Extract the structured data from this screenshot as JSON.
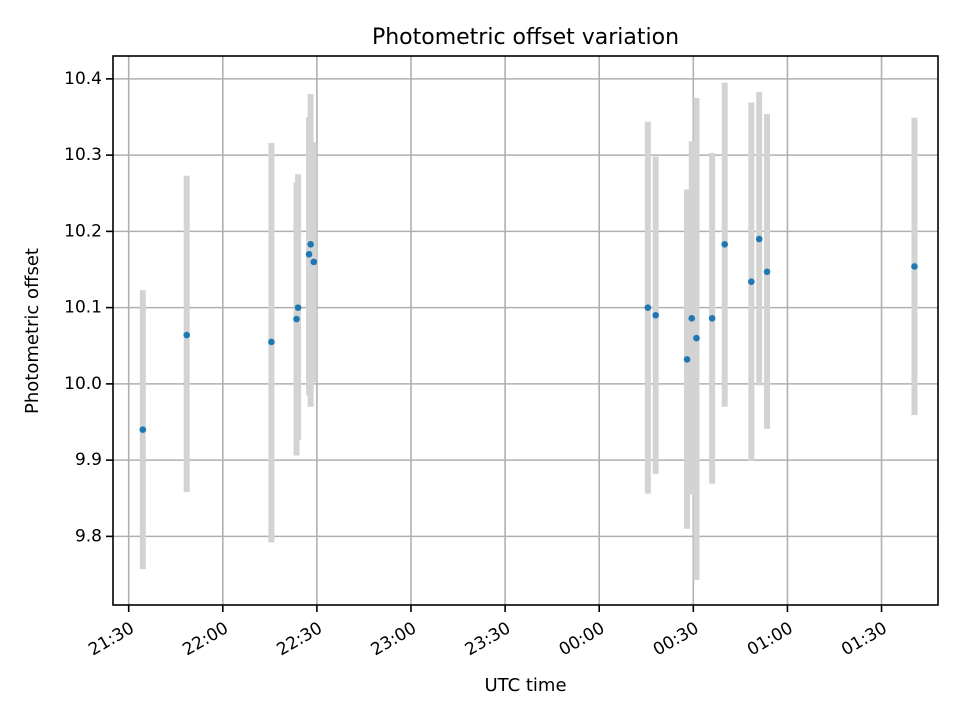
{
  "chart_data": {
    "type": "scatter",
    "title": "Photometric offset variation",
    "xlabel": "UTC time",
    "ylabel": "Photometric offset",
    "grid": true,
    "x_axis": {
      "kind": "time",
      "range": [
        "2000-01-01T21:25:00",
        "2000-01-02T01:48:00"
      ],
      "ticks": [
        "2000-01-01T21:30:00",
        "2000-01-01T22:00:00",
        "2000-01-01T22:30:00",
        "2000-01-01T23:00:00",
        "2000-01-01T23:30:00",
        "2000-01-02T00:00:00",
        "2000-01-02T00:30:00",
        "2000-01-02T01:00:00",
        "2000-01-02T01:30:00"
      ],
      "tick_labels": [
        "21:30",
        "22:00",
        "22:30",
        "23:00",
        "23:30",
        "00:00",
        "00:30",
        "01:00",
        "01:30"
      ]
    },
    "y_axis": {
      "range": [
        9.71,
        10.43
      ],
      "ticks": [
        9.8,
        9.9,
        10.0,
        10.1,
        10.2,
        10.3,
        10.4
      ],
      "tick_labels": [
        "9.8",
        "9.9",
        "10.0",
        "10.1",
        "10.2",
        "10.3",
        "10.4"
      ]
    },
    "colors": {
      "point": "#1f77b4",
      "errorbar": "#d3d3d3",
      "grid": "#b0b0b0"
    },
    "points": [
      {
        "t": "2000-01-01T21:34:30",
        "y": 9.94,
        "lo": 9.757,
        "hi": 10.123
      },
      {
        "t": "2000-01-01T21:48:30",
        "y": 10.064,
        "lo": 9.858,
        "hi": 10.273
      },
      {
        "t": "2000-01-01T22:15:30",
        "y": 10.055,
        "lo": 9.792,
        "hi": 10.316
      },
      {
        "t": "2000-01-01T22:23:30",
        "y": 10.085,
        "lo": 9.906,
        "hi": 10.264
      },
      {
        "t": "2000-01-01T22:24:00",
        "y": 10.1,
        "lo": 9.926,
        "hi": 10.275
      },
      {
        "t": "2000-01-01T22:27:30",
        "y": 10.17,
        "lo": 9.985,
        "hi": 10.35
      },
      {
        "t": "2000-01-01T22:28:00",
        "y": 10.183,
        "lo": 9.97,
        "hi": 10.38
      },
      {
        "t": "2000-01-01T22:29:00",
        "y": 10.16,
        "lo": 10.002,
        "hi": 10.317
      },
      {
        "t": "2000-01-02T00:15:30",
        "y": 10.1,
        "lo": 9.856,
        "hi": 10.344
      },
      {
        "t": "2000-01-02T00:18:00",
        "y": 10.09,
        "lo": 9.882,
        "hi": 10.298
      },
      {
        "t": "2000-01-02T00:28:00",
        "y": 10.032,
        "lo": 9.81,
        "hi": 10.255
      },
      {
        "t": "2000-01-02T00:29:30",
        "y": 10.086,
        "lo": 9.855,
        "hi": 10.318
      },
      {
        "t": "2000-01-02T00:31:00",
        "y": 10.06,
        "lo": 9.743,
        "hi": 10.375
      },
      {
        "t": "2000-01-02T00:36:00",
        "y": 10.086,
        "lo": 9.869,
        "hi": 10.303
      },
      {
        "t": "2000-01-02T00:40:00",
        "y": 10.183,
        "lo": 9.97,
        "hi": 10.395
      },
      {
        "t": "2000-01-02T00:48:30",
        "y": 10.134,
        "lo": 9.899,
        "hi": 10.369
      },
      {
        "t": "2000-01-02T00:51:00",
        "y": 10.19,
        "lo": 9.998,
        "hi": 10.383
      },
      {
        "t": "2000-01-02T00:53:30",
        "y": 10.147,
        "lo": 9.941,
        "hi": 10.354
      },
      {
        "t": "2000-01-02T01:40:30",
        "y": 10.154,
        "lo": 9.959,
        "hi": 10.349
      }
    ]
  }
}
